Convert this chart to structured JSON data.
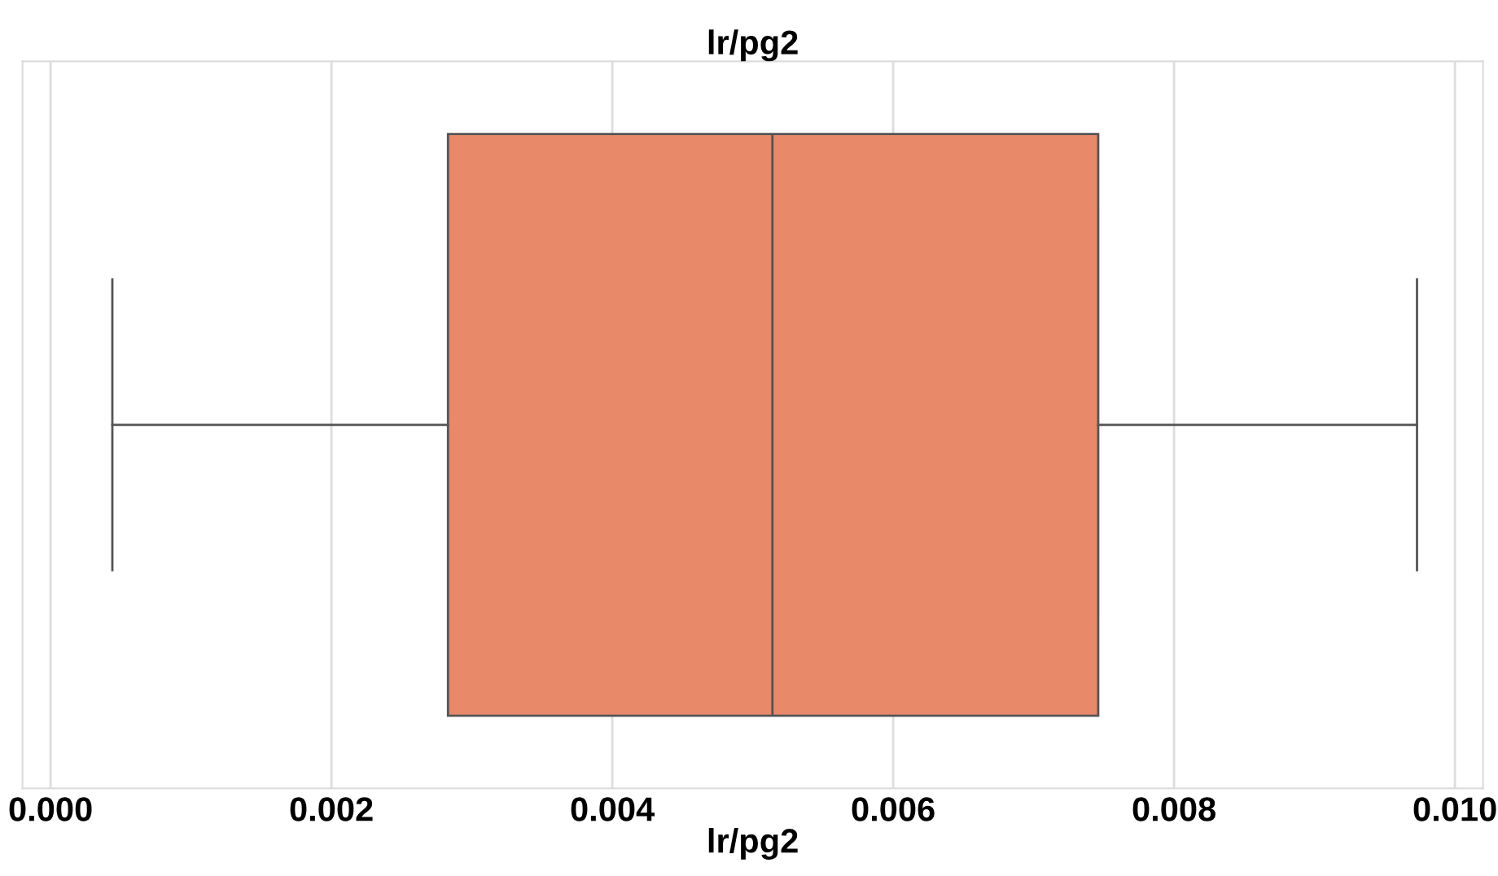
{
  "chart_data": {
    "type": "box",
    "title": "lr/pg2",
    "xlabel": "lr/pg2",
    "orientation": "horizontal",
    "categories": [
      null
    ],
    "series": [
      {
        "color": "#e8896a",
        "boxes": [
          {
            "low": 0.00044,
            "q1": 0.00283,
            "median": 0.00514,
            "q3": 0.00746,
            "high": 0.00973
          }
        ]
      }
    ],
    "xlim": [
      -0.0002,
      0.0102
    ],
    "xticks": [
      {
        "value": 0.0,
        "label": "0.000"
      },
      {
        "value": 0.002,
        "label": "0.002"
      },
      {
        "value": 0.004,
        "label": "0.004"
      },
      {
        "value": 0.006,
        "label": "0.006"
      },
      {
        "value": 0.008,
        "label": "0.008"
      },
      {
        "value": 0.01,
        "label": "0.010"
      }
    ],
    "grid": "x",
    "tick_labels": "x"
  }
}
